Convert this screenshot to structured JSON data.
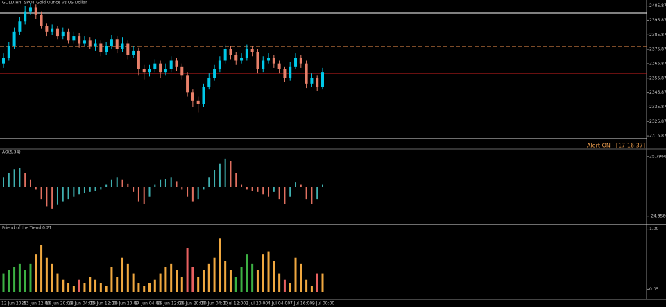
{
  "chart_data": [
    {
      "type": "candlestick",
      "title": "GOLD,H4:  SPOT Gold Ounce vs US Dollar",
      "alert": "Alert ON -  [17:16:37]",
      "open": [
        2366,
        2370,
        2378,
        2388,
        2395,
        2402,
        2405,
        2400,
        2392,
        2388,
        2390,
        2385,
        2388,
        2382,
        2385,
        2380,
        2382,
        2378,
        2380,
        2374,
        2378,
        2383,
        2376,
        2380,
        2372,
        2375,
        2362,
        2360,
        2362,
        2366,
        2360,
        2362,
        2368,
        2364,
        2358,
        2346,
        2340,
        2338,
        2350,
        2356,
        2362,
        2368,
        2376,
        2372,
        2368,
        2370,
        2376,
        2374,
        2362,
        2368,
        2370,
        2366,
        2362,
        2356,
        2364,
        2370,
        2366,
        2352,
        2356,
        2350
      ],
      "high": [
        2373,
        2381,
        2391,
        2398,
        2406,
        2408,
        2407,
        2402,
        2394,
        2393,
        2392,
        2391,
        2390,
        2388,
        2387,
        2385,
        2384,
        2383,
        2382,
        2381,
        2386,
        2385,
        2384,
        2382,
        2378,
        2377,
        2365,
        2365,
        2369,
        2368,
        2366,
        2371,
        2370,
        2366,
        2360,
        2348,
        2343,
        2352,
        2359,
        2365,
        2371,
        2379,
        2378,
        2374,
        2373,
        2379,
        2378,
        2376,
        2371,
        2373,
        2372,
        2368,
        2364,
        2367,
        2373,
        2372,
        2368,
        2359,
        2358,
        2363
      ],
      "low": [
        2363,
        2368,
        2376,
        2386,
        2393,
        2400,
        2397,
        2390,
        2385,
        2386,
        2383,
        2383,
        2380,
        2380,
        2377,
        2378,
        2376,
        2375,
        2371,
        2372,
        2376,
        2373,
        2374,
        2369,
        2370,
        2358,
        2355,
        2357,
        2360,
        2356,
        2358,
        2360,
        2361,
        2355,
        2343,
        2336,
        2332,
        2336,
        2348,
        2354,
        2360,
        2366,
        2369,
        2365,
        2366,
        2368,
        2371,
        2359,
        2360,
        2366,
        2363,
        2359,
        2353,
        2354,
        2362,
        2363,
        2349,
        2350,
        2347,
        2348
      ],
      "close": [
        2370,
        2378,
        2388,
        2395,
        2402,
        2405,
        2400,
        2392,
        2388,
        2390,
        2385,
        2388,
        2382,
        2385,
        2380,
        2382,
        2378,
        2380,
        2374,
        2378,
        2383,
        2376,
        2380,
        2372,
        2375,
        2362,
        2360,
        2362,
        2366,
        2360,
        2362,
        2368,
        2364,
        2358,
        2346,
        2340,
        2338,
        2350,
        2356,
        2362,
        2368,
        2376,
        2372,
        2368,
        2370,
        2376,
        2374,
        2362,
        2368,
        2370,
        2366,
        2362,
        2356,
        2364,
        2370,
        2366,
        2352,
        2356,
        2350,
        2360
      ],
      "up_color": "#00c8e8",
      "down_color": "#e8806a",
      "levels": [
        {
          "value": 2400.9,
          "color": "#ffffff",
          "dash": false
        },
        {
          "value": 2377.8,
          "color": "#c87840",
          "dash": true
        },
        {
          "value": 2359.1,
          "color": "#d02020",
          "dash": false
        }
      ],
      "ylim": [
        2314,
        2410
      ],
      "yticks": [
        2405.87,
        2395.87,
        2385.87,
        2375.87,
        2365.87,
        2355.87,
        2345.87,
        2335.87,
        2325.87,
        2315.87
      ],
      "time_axis": [
        "12 Jun 2025",
        "13 Jun 12:00",
        "16 Jun 20:00",
        "18 Jun 04:00",
        "19 Jun 12:00",
        "20 Jun 20:00",
        "24 Jun 04:00",
        "25 Jun 12:00",
        "26 Jun 20:00",
        "30 Jun 04:00",
        "1 Jul 12:00",
        "2 Jul 20:00",
        "4 Jul 04:00",
        "7 Jul 16:00",
        "9 Jul 00:00"
      ]
    },
    {
      "type": "histogram",
      "title": "AO(5,34)",
      "values": [
        8,
        12,
        15,
        16,
        12,
        6,
        -2,
        -10,
        -16,
        -18,
        -15,
        -12,
        -10,
        -8,
        -6,
        -5,
        -4,
        -3,
        -2,
        2,
        6,
        8,
        6,
        3,
        -4,
        -12,
        -14,
        -8,
        2,
        6,
        7,
        8,
        5,
        -2,
        -8,
        -12,
        -10,
        -2,
        8,
        14,
        20,
        24,
        22,
        12,
        2,
        -2,
        -3,
        -4,
        -6,
        -8,
        -4,
        -10,
        -14,
        -8,
        4,
        2,
        -10,
        -14,
        -10,
        2
      ],
      "up_color": "#40b0b0",
      "down_color": "#e07060",
      "ylim": [
        -28,
        28
      ],
      "yticks": [
        25.7966,
        -24.3566
      ]
    },
    {
      "type": "bar",
      "title": "Friend of the Trend 0.21",
      "values": [
        0.3,
        0.35,
        0.4,
        0.45,
        0.35,
        0.45,
        0.6,
        0.75,
        0.55,
        0.45,
        0.3,
        0.2,
        0.15,
        0.1,
        0.2,
        0.15,
        0.25,
        0.2,
        0.15,
        0.1,
        0.4,
        0.25,
        0.55,
        0.45,
        0.3,
        0.15,
        0.1,
        0.15,
        0.2,
        0.3,
        0.4,
        0.45,
        0.35,
        0.25,
        0.7,
        0.4,
        0.25,
        0.35,
        0.45,
        0.55,
        0.85,
        0.5,
        0.35,
        0.25,
        0.4,
        0.6,
        0.45,
        0.35,
        0.6,
        0.65,
        0.5,
        0.3,
        0.2,
        0.15,
        0.55,
        0.45,
        0.2,
        0.1,
        0.3,
        0.3
      ],
      "colors": [
        "#3cb043",
        "#3cb043",
        "#3cb043",
        "#3cb043",
        "#3cb043",
        "#3cb043",
        "#f0a840",
        "#f0a840",
        "#f0a840",
        "#f0a840",
        "#f0a840",
        "#f0a840",
        "#f0a840",
        "#f0a840",
        "#e86060",
        "#f0a840",
        "#f0a840",
        "#f0a840",
        "#f0a840",
        "#f0a840",
        "#f0a840",
        "#f0a840",
        "#f0a840",
        "#f0a840",
        "#f0a840",
        "#f0a840",
        "#f0a840",
        "#f0a840",
        "#f0a840",
        "#f0a840",
        "#f0a840",
        "#f0a840",
        "#f0a840",
        "#f0a840",
        "#e86060",
        "#e86060",
        "#f0a840",
        "#f0a840",
        "#f0a840",
        "#f0a840",
        "#f0a840",
        "#f0a840",
        "#f0a840",
        "#3cb043",
        "#3cb043",
        "#3cb043",
        "#3cb043",
        "#f0a840",
        "#f0a840",
        "#f0a840",
        "#f0a840",
        "#f0a840",
        "#e86060",
        "#f0a840",
        "#f0a840",
        "#f0a840",
        "#f0a840",
        "#f0a840",
        "#e86060",
        "#f0a840"
      ],
      "ylim": [
        0,
        1.05
      ],
      "yticks": [
        {
          "value": 1,
          "label": "1.00"
        },
        {
          "value": 0.05,
          "label": "0.05"
        }
      ]
    }
  ]
}
